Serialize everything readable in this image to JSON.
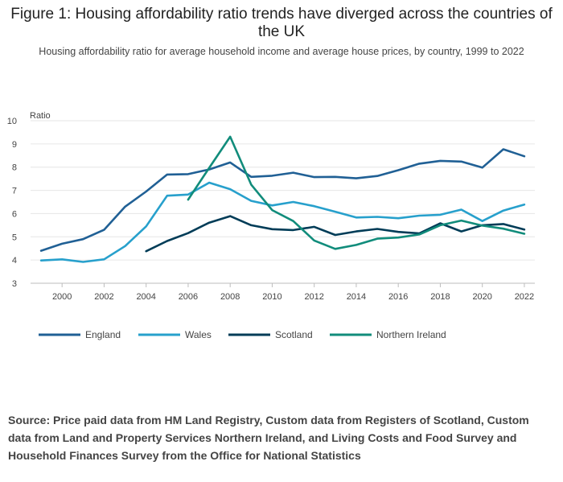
{
  "title": "Figure 1: Housing affordability ratio trends have diverged across the countries of the UK",
  "subtitle": "Housing affordability ratio for average household income and average house prices, by country, 1999 to 2022",
  "source": "Source: Price paid data from HM Land Registry, Custom data from Registers of Scotland, Custom data from Land and Property Services Northern Ireland, and Living Costs and Food Survey and Household Finances Survey from the Office for National Statistics",
  "chart_data": {
    "type": "line",
    "title": "Figure 1: Housing affordability ratio trends have diverged across the countries of the UK",
    "subtitle": "Housing affordability ratio for average household income and average house prices, by country, 1999 to 2022",
    "xlabel": "",
    "ylabel": "Ratio",
    "xlim": [
      1998.5,
      2022.5
    ],
    "ylim": [
      3,
      10
    ],
    "xticks": [
      2000,
      2002,
      2004,
      2006,
      2008,
      2010,
      2012,
      2014,
      2016,
      2018,
      2020,
      2022
    ],
    "yticks": [
      3,
      4,
      5,
      6,
      7,
      8,
      9,
      10
    ],
    "grid": true,
    "legend_position": "bottom",
    "x": [
      1999,
      2000,
      2001,
      2002,
      2003,
      2004,
      2005,
      2006,
      2007,
      2008,
      2009,
      2010,
      2011,
      2012,
      2013,
      2014,
      2015,
      2016,
      2017,
      2018,
      2019,
      2020,
      2021,
      2022
    ],
    "series": [
      {
        "name": "England",
        "color": "#206095",
        "values": [
          4.4,
          4.7,
          4.9,
          5.3,
          6.3,
          6.95,
          7.68,
          7.7,
          7.9,
          8.2,
          7.58,
          7.63,
          7.76,
          7.57,
          7.58,
          7.52,
          7.62,
          7.87,
          8.15,
          8.27,
          8.24,
          7.98,
          8.77,
          8.47
        ]
      },
      {
        "name": "Wales",
        "color": "#27a0cc",
        "values": [
          3.98,
          4.03,
          3.92,
          4.03,
          4.6,
          5.45,
          6.77,
          6.82,
          7.33,
          7.05,
          6.55,
          6.35,
          6.5,
          6.32,
          6.08,
          5.83,
          5.86,
          5.8,
          5.91,
          5.95,
          6.17,
          5.68,
          6.13,
          6.39
        ]
      },
      {
        "name": "Scotland",
        "color": "#003c57",
        "values": [
          null,
          null,
          null,
          null,
          null,
          4.38,
          4.82,
          5.16,
          5.61,
          5.89,
          5.5,
          5.33,
          5.29,
          5.43,
          5.08,
          5.23,
          5.34,
          5.21,
          5.15,
          5.58,
          5.23,
          5.5,
          5.55,
          5.31
        ]
      },
      {
        "name": "Northern Ireland",
        "color": "#118c7b",
        "values": [
          null,
          null,
          null,
          null,
          null,
          null,
          null,
          6.6,
          7.97,
          9.31,
          7.25,
          6.15,
          5.68,
          4.84,
          4.48,
          4.65,
          4.92,
          4.97,
          5.1,
          5.5,
          5.7,
          5.48,
          5.35,
          5.13
        ]
      }
    ]
  }
}
